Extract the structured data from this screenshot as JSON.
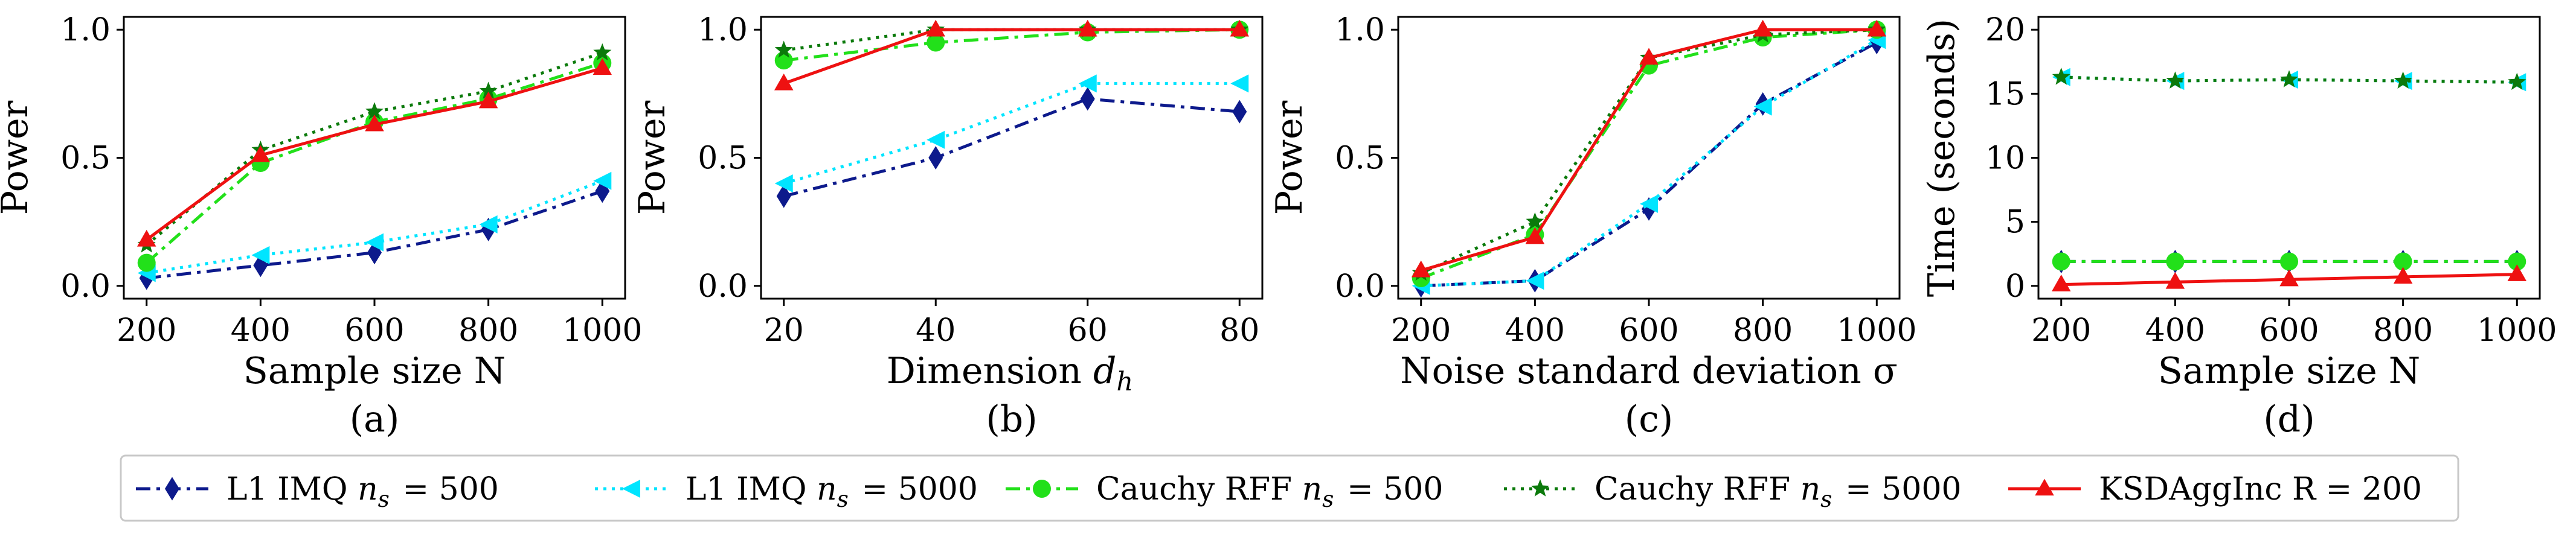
{
  "legend": [
    {
      "key": "l1_500",
      "label": "L1 IMQ n_s = 500"
    },
    {
      "key": "l1_5000",
      "label": "L1 IMQ n_s = 5000"
    },
    {
      "key": "cauchy_500",
      "label": "Cauchy RFF n_s = 500"
    },
    {
      "key": "cauchy_5000",
      "label": "Cauchy RFF n_s = 5000"
    },
    {
      "key": "ksdagg",
      "label": "KSDAggInc R = 200"
    }
  ],
  "styles": {
    "l1_500": {
      "color": "#0d1a8c",
      "dash": "24 10 6 10",
      "marker": "diamond"
    },
    "l1_5000": {
      "color": "#00e5ff",
      "dash": "5 9",
      "marker": "triangle-left"
    },
    "cauchy_500": {
      "color": "#22e01a",
      "dash": "24 10 6 10",
      "marker": "circle"
    },
    "cauchy_5000": {
      "color": "#0b7a0b",
      "dash": "5 9",
      "marker": "star"
    },
    "ksdagg": {
      "color": "#ee1111",
      "dash": "",
      "marker": "triangle-up"
    }
  },
  "chart_data": [
    {
      "type": "line",
      "panel_label": "(a)",
      "xlabel": "Sample size N",
      "ylabel": "Power",
      "x": [
        200,
        400,
        600,
        800,
        1000
      ],
      "xticks": [
        "200",
        "400",
        "600",
        "800",
        "1000"
      ],
      "xlim": [
        160,
        1040
      ],
      "yticks": [
        "0.0",
        "0.5",
        "1.0"
      ],
      "ylim": [
        -0.05,
        1.05
      ],
      "series": [
        {
          "key": "l1_500",
          "name": "L1 IMQ n_s = 500",
          "values": [
            0.03,
            0.08,
            0.13,
            0.22,
            0.37
          ]
        },
        {
          "key": "l1_5000",
          "name": "L1 IMQ n_s = 5000",
          "values": [
            0.05,
            0.12,
            0.17,
            0.24,
            0.41
          ]
        },
        {
          "key": "cauchy_500",
          "name": "Cauchy RFF n_s = 500",
          "values": [
            0.09,
            0.48,
            0.64,
            0.73,
            0.87
          ]
        },
        {
          "key": "cauchy_5000",
          "name": "Cauchy RFF n_s = 5000",
          "values": [
            0.16,
            0.53,
            0.68,
            0.76,
            0.91
          ]
        },
        {
          "key": "ksdagg",
          "name": "KSDAggInc R = 200",
          "values": [
            0.18,
            0.51,
            0.63,
            0.72,
            0.85
          ]
        }
      ]
    },
    {
      "type": "line",
      "panel_label": "(b)",
      "xlabel": "Dimension d_h",
      "ylabel": "Power",
      "x": [
        20,
        40,
        60,
        80
      ],
      "xticks": [
        "20",
        "40",
        "60",
        "80"
      ],
      "xlim": [
        17,
        83
      ],
      "yticks": [
        "0.0",
        "0.5",
        "1.0"
      ],
      "ylim": [
        -0.05,
        1.05
      ],
      "series": [
        {
          "key": "l1_500",
          "name": "L1 IMQ n_s = 500",
          "values": [
            0.35,
            0.5,
            0.73,
            0.68
          ]
        },
        {
          "key": "l1_5000",
          "name": "L1 IMQ n_s = 5000",
          "values": [
            0.4,
            0.57,
            0.79,
            0.79
          ]
        },
        {
          "key": "cauchy_500",
          "name": "Cauchy RFF n_s = 500",
          "values": [
            0.88,
            0.95,
            0.99,
            1.0
          ]
        },
        {
          "key": "cauchy_5000",
          "name": "Cauchy RFF n_s = 5000",
          "values": [
            0.92,
            1.0,
            1.0,
            1.0
          ]
        },
        {
          "key": "ksdagg",
          "name": "KSDAggInc R = 200",
          "values": [
            0.79,
            1.0,
            1.0,
            1.0
          ]
        }
      ]
    },
    {
      "type": "line",
      "panel_label": "(c)",
      "xlabel": "Noise standard deviation σ",
      "ylabel": "Power",
      "x": [
        200,
        400,
        600,
        800,
        1000
      ],
      "xticks": [
        "200",
        "400",
        "600",
        "800",
        "1000"
      ],
      "xlim": [
        160,
        1040
      ],
      "yticks": [
        "0.0",
        "0.5",
        "1.0"
      ],
      "ylim": [
        -0.05,
        1.05
      ],
      "series": [
        {
          "key": "l1_500",
          "name": "L1 IMQ n_s = 500",
          "values": [
            0.0,
            0.02,
            0.3,
            0.71,
            0.95
          ]
        },
        {
          "key": "l1_5000",
          "name": "L1 IMQ n_s = 5000",
          "values": [
            0.0,
            0.02,
            0.32,
            0.7,
            0.96
          ]
        },
        {
          "key": "cauchy_500",
          "name": "Cauchy RFF n_s = 500",
          "values": [
            0.03,
            0.2,
            0.86,
            0.97,
            1.0
          ]
        },
        {
          "key": "cauchy_5000",
          "name": "Cauchy RFF n_s = 5000",
          "values": [
            0.05,
            0.25,
            0.89,
            0.98,
            1.0
          ]
        },
        {
          "key": "ksdagg",
          "name": "KSDAggInc R = 200",
          "values": [
            0.06,
            0.19,
            0.89,
            1.0,
            1.0
          ]
        }
      ]
    },
    {
      "type": "line",
      "panel_label": "(d)",
      "xlabel": "Sample size N",
      "ylabel": "Time (seconds)",
      "x": [
        200,
        400,
        600,
        800,
        1000
      ],
      "xticks": [
        "200",
        "400",
        "600",
        "800",
        "1000"
      ],
      "xlim": [
        160,
        1040
      ],
      "yticks": [
        "0",
        "5",
        "10",
        "15",
        "20"
      ],
      "ylim": [
        -1,
        21
      ],
      "series": [
        {
          "key": "l1_500",
          "name": "L1 IMQ n_s = 500",
          "values": [
            1.9,
            1.9,
            1.9,
            1.9,
            1.9
          ]
        },
        {
          "key": "l1_5000",
          "name": "L1 IMQ n_s = 5000",
          "values": [
            16.3,
            16.0,
            16.1,
            16.0,
            15.9
          ]
        },
        {
          "key": "cauchy_500",
          "name": "Cauchy RFF n_s = 500",
          "values": [
            1.9,
            1.9,
            1.9,
            1.9,
            1.9
          ]
        },
        {
          "key": "cauchy_5000",
          "name": "Cauchy RFF n_s = 5000",
          "values": [
            16.3,
            16.0,
            16.1,
            16.0,
            15.9
          ]
        },
        {
          "key": "ksdagg",
          "name": "KSDAggInc R = 200",
          "values": [
            0.1,
            0.3,
            0.5,
            0.7,
            0.9
          ]
        }
      ]
    }
  ]
}
